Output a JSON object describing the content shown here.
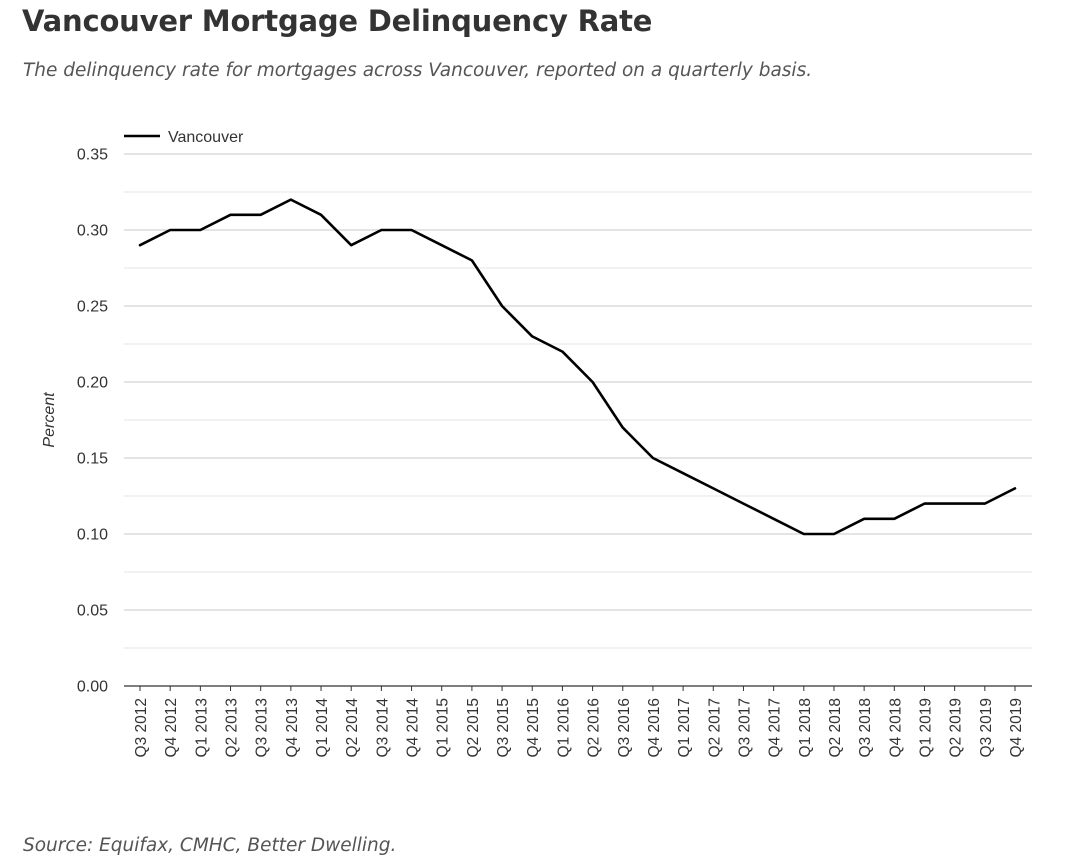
{
  "title": "Vancouver Mortgage Delinquency Rate",
  "subtitle": "The delinquency rate for mortgages across Vancouver, reported on a quarterly basis.",
  "source": "Source: Equifax, CMHC, Better Dwelling.",
  "colors": {
    "line": "#000000",
    "grid": "#cccccc",
    "axis": "#333333"
  },
  "chart_data": {
    "type": "line",
    "title": "",
    "xlabel": "",
    "ylabel": "Percent",
    "ylim": [
      0,
      0.35
    ],
    "yticks": [
      "0.00",
      "0.05",
      "0.10",
      "0.15",
      "0.20",
      "0.25",
      "0.30",
      "0.35"
    ],
    "grid": true,
    "legend": "top-left",
    "categories": [
      "Q3 2012",
      "Q4 2012",
      "Q1 2013",
      "Q2 2013",
      "Q3 2013",
      "Q4 2013",
      "Q1 2014",
      "Q2 2014",
      "Q3 2014",
      "Q4 2014",
      "Q1 2015",
      "Q2 2015",
      "Q3 2015",
      "Q4 2015",
      "Q1 2016",
      "Q2 2016",
      "Q3 2016",
      "Q4 2016",
      "Q1 2017",
      "Q2 2017",
      "Q3 2017",
      "Q4 2017",
      "Q1 2018",
      "Q2 2018",
      "Q3 2018",
      "Q4 2018",
      "Q1 2019",
      "Q2 2019",
      "Q3 2019",
      "Q4 2019"
    ],
    "series": [
      {
        "name": "Vancouver",
        "values": [
          0.29,
          0.3,
          0.3,
          0.31,
          0.31,
          0.32,
          0.31,
          0.29,
          0.3,
          0.3,
          0.29,
          0.28,
          0.25,
          0.23,
          0.22,
          0.2,
          0.17,
          0.15,
          0.14,
          0.13,
          0.12,
          0.11,
          0.1,
          0.1,
          0.11,
          0.11,
          0.12,
          0.12,
          0.12,
          0.13
        ]
      }
    ]
  }
}
